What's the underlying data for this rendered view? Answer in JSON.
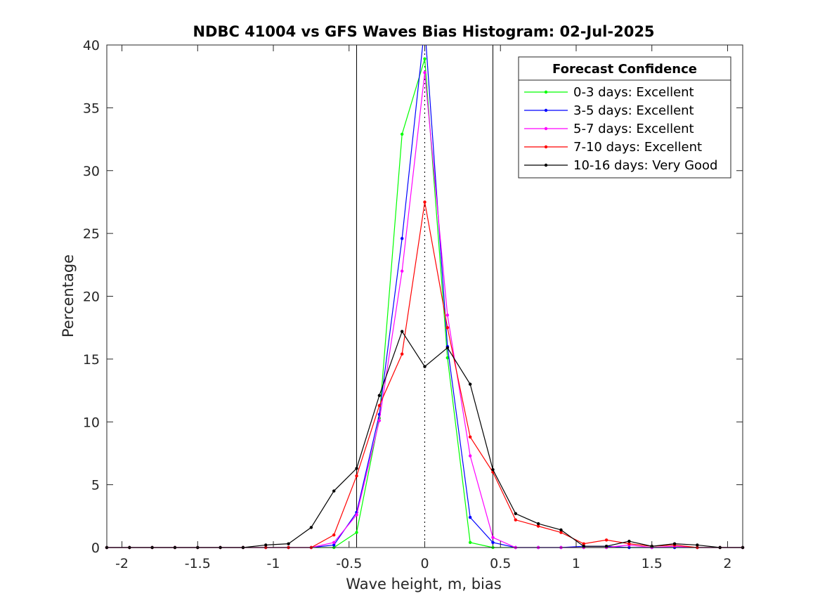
{
  "chart_data": {
    "type": "line",
    "title": "NDBC 41004 vs GFS Waves Bias Histogram: 02-Jul-2025",
    "xlabel": "Wave height, m, bias",
    "ylabel": "Percentage",
    "xlim": [
      -2.1,
      2.1
    ],
    "ylim": [
      0,
      40
    ],
    "xticks": [
      -2,
      -1.5,
      -1,
      -0.5,
      0,
      0.5,
      1,
      1.5,
      2
    ],
    "xtick_labels": [
      "-2",
      "-1.5",
      "-1",
      "-0.5",
      "0",
      "0.5",
      "1",
      "1.5",
      "2"
    ],
    "yticks": [
      0,
      5,
      10,
      15,
      20,
      25,
      30,
      35,
      40
    ],
    "ytick_labels": [
      "0",
      "5",
      "10",
      "15",
      "20",
      "25",
      "30",
      "35",
      "40"
    ],
    "grid": false,
    "vertical_lines": [
      {
        "x": -0.45,
        "style": "solid"
      },
      {
        "x": 0.45,
        "style": "solid"
      },
      {
        "x": 0,
        "style": "dotted"
      }
    ],
    "legend": {
      "title": "Forecast Confidence",
      "position": "top-right"
    },
    "x": [
      -2.1,
      -1.95,
      -1.8,
      -1.65,
      -1.5,
      -1.35,
      -1.2,
      -1.05,
      -0.9,
      -0.75,
      -0.6,
      -0.45,
      -0.3,
      -0.15,
      0,
      0.15,
      0.3,
      0.45,
      0.6,
      0.75,
      0.9,
      1.05,
      1.2,
      1.35,
      1.5,
      1.65,
      1.8,
      1.95,
      2.1
    ],
    "series": [
      {
        "name": "0-3 days: Excellent",
        "color": "#00ff00",
        "values": [
          0,
          0,
          0,
          0,
          0,
          0,
          0,
          0,
          0,
          0,
          0,
          1.2,
          10.3,
          32.9,
          38.9,
          15.1,
          0.4,
          0,
          0,
          0,
          0,
          0,
          0,
          0,
          0,
          0,
          0,
          0,
          0
        ]
      },
      {
        "name": "3-5 days: Excellent",
        "color": "#0000ff",
        "values": [
          0,
          0,
          0,
          0,
          0,
          0,
          0,
          0,
          0,
          0,
          0.2,
          2.8,
          10.6,
          24.6,
          41.5,
          16.0,
          2.4,
          0.4,
          0,
          0,
          0,
          0.1,
          0.1,
          0,
          0,
          0,
          0,
          0,
          0
        ]
      },
      {
        "name": "5-7 days: Excellent",
        "color": "#ff00ff",
        "values": [
          0,
          0,
          0,
          0,
          0,
          0,
          0,
          0,
          0,
          0,
          0.4,
          2.6,
          10.1,
          22.0,
          37.8,
          18.5,
          7.3,
          0.8,
          0,
          0,
          0,
          0,
          0,
          0.2,
          0,
          0.1,
          0,
          0,
          0
        ]
      },
      {
        "name": "7-10 days: Excellent",
        "color": "#ff0000",
        "values": [
          0,
          0,
          0,
          0,
          0,
          0,
          0,
          0,
          0,
          0,
          1.0,
          5.7,
          11.3,
          15.4,
          27.5,
          17.5,
          8.8,
          6.0,
          2.2,
          1.7,
          1.2,
          0.3,
          0.6,
          0.3,
          0.1,
          0.2,
          0,
          0,
          0
        ]
      },
      {
        "name": "10-16 days: Very Good",
        "color": "#000000",
        "values": [
          0,
          0,
          0,
          0,
          0,
          0,
          0,
          0.2,
          0.3,
          1.6,
          4.5,
          6.3,
          12.1,
          17.2,
          14.4,
          15.9,
          13.0,
          6.2,
          2.7,
          1.9,
          1.4,
          0.1,
          0.1,
          0.5,
          0.1,
          0.3,
          0.2,
          0,
          0
        ]
      }
    ]
  }
}
